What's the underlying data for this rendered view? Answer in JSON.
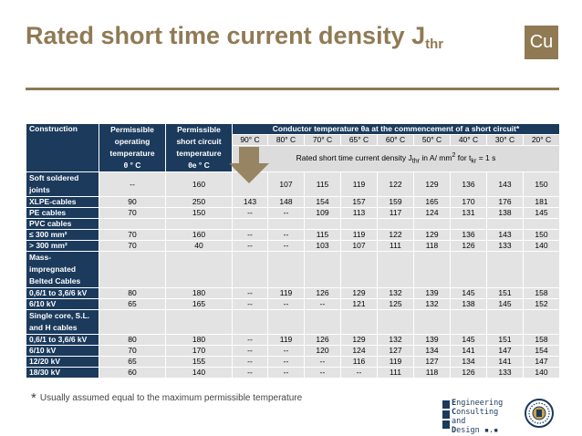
{
  "slide": {
    "title": "Rated short time current density J",
    "title_sub": "thr",
    "badge": "Cu"
  },
  "table": {
    "head_construction": "Construction",
    "head_operating": "Permissible operating temperature",
    "head_operating_unit": "θ ° C",
    "head_shortcircuit": "Permissible short circuit temperature",
    "head_shortcircuit_unit": "θe ° C",
    "head_conductor": "Conductor temperature θa at the commencement of a short circuit*",
    "temps": [
      "90° C",
      "80° C",
      "70° C",
      "65° C",
      "60° C",
      "50° C",
      "40° C",
      "30° C",
      "20° C"
    ],
    "rated_label_pre": "Rated short time current density J",
    "rated_label_sub": "thr",
    "rated_label_mid": " in A/ mm",
    "rated_label_sup": "2",
    "rated_label_post": " for t",
    "rated_label_sub2": "kr",
    "rated_label_end": " = 1 s",
    "rows": [
      {
        "label": "Soft soldered joints",
        "op": "--",
        "sc": "160",
        "vals": [
          "",
          "107",
          "115",
          "119",
          "122",
          "129",
          "136",
          "143",
          "150"
        ]
      },
      {
        "label": "XLPE-cables",
        "op": "90",
        "sc": "250",
        "vals": [
          "143",
          "148",
          "154",
          "157",
          "159",
          "165",
          "170",
          "176",
          "181"
        ]
      },
      {
        "label": "PE cables",
        "op": "70",
        "sc": "150",
        "vals": [
          "--",
          "--",
          "109",
          "113",
          "117",
          "124",
          "131",
          "138",
          "145"
        ]
      },
      {
        "label": "PVC cables",
        "op": "",
        "sc": "",
        "vals": [
          "",
          "",
          "",
          "",
          "",
          "",
          "",
          "",
          ""
        ]
      },
      {
        "label": "≤ 300 mm²",
        "op": "70",
        "sc": "160",
        "vals": [
          "--",
          "--",
          "115",
          "119",
          "122",
          "129",
          "136",
          "143",
          "150"
        ]
      },
      {
        "label": "> 300 mm²",
        "op": "70",
        "sc": "40",
        "vals": [
          "--",
          "--",
          "103",
          "107",
          "111",
          "118",
          "126",
          "133",
          "140"
        ]
      },
      {
        "label": "Mass-impregnated Belted Cables",
        "op": "",
        "sc": "",
        "vals": [
          "",
          "",
          "",
          "",
          "",
          "",
          "",
          "",
          ""
        ]
      },
      {
        "label": "0,6/1 to 3,6/6 kV",
        "op": "80",
        "sc": "180",
        "vals": [
          "--",
          "119",
          "126",
          "129",
          "132",
          "139",
          "145",
          "151",
          "158"
        ]
      },
      {
        "label": "6/10 kV",
        "op": "65",
        "sc": "165",
        "vals": [
          "--",
          "--",
          "--",
          "121",
          "125",
          "132",
          "138",
          "145",
          "152"
        ]
      },
      {
        "label": "Single core, S.L. and H cables",
        "op": "",
        "sc": "",
        "vals": [
          "",
          "",
          "",
          "",
          "",
          "",
          "",
          "",
          ""
        ]
      },
      {
        "label": "0,6/1 to 3,6/6 kV",
        "op": "80",
        "sc": "180",
        "vals": [
          "--",
          "119",
          "126",
          "129",
          "132",
          "139",
          "145",
          "151",
          "158"
        ]
      },
      {
        "label": "6/10 kV",
        "op": "70",
        "sc": "170",
        "vals": [
          "--",
          "--",
          "120",
          "124",
          "127",
          "134",
          "141",
          "147",
          "154"
        ]
      },
      {
        "label": "12/20 kV",
        "op": "65",
        "sc": "155",
        "vals": [
          "--",
          "--",
          "--",
          "116",
          "119",
          "127",
          "134",
          "141",
          "147"
        ]
      },
      {
        "label": "18/30 kV",
        "op": "60",
        "sc": "140",
        "vals": [
          "--",
          "--",
          "--",
          "--",
          "111",
          "118",
          "126",
          "133",
          "140"
        ]
      }
    ]
  },
  "footnote": {
    "star": "*",
    "text": "Usually assumed equal to the maximum permissible temperature"
  },
  "logo": {
    "line1_initial": "E",
    "line1_rest": "ngineering",
    "line2_initial": "C",
    "line2_rest": "onsulting and",
    "line3_initial": "D",
    "line3_rest": "esign"
  },
  "colors": {
    "title": "#8f7a54",
    "header_bg": "#1b3a5c",
    "cell_bg": "#e3e3e3",
    "arrow": "#8f7a54"
  }
}
